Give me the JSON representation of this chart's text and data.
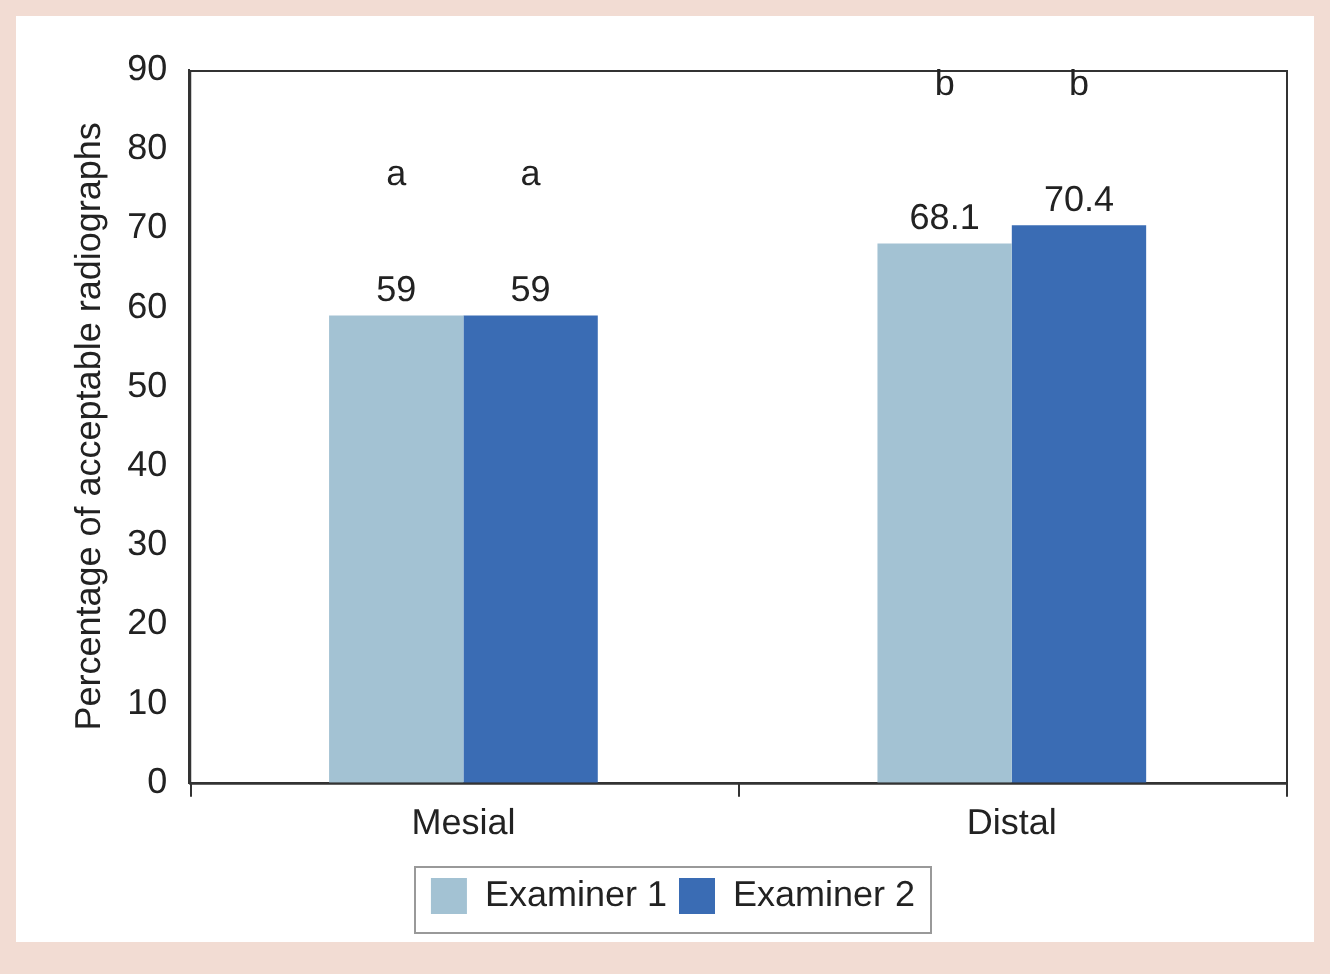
{
  "chart_data": {
    "type": "bar",
    "ylabel": "Percentage of acceptable radiographs",
    "categories": [
      "Mesial",
      "Distal"
    ],
    "series": [
      {
        "name": "Examiner 1",
        "color": "#a3c2d3",
        "values": [
          59,
          68.1
        ]
      },
      {
        "name": "Examiner 2",
        "color": "#3a6cb4",
        "values": [
          59,
          70.4
        ]
      }
    ],
    "ylim": [
      0,
      90
    ],
    "yticks": [
      0,
      10,
      20,
      30,
      40,
      50,
      60,
      70,
      80,
      90
    ],
    "data_labels": true,
    "grid": false,
    "legend": "bottom",
    "annotations": [
      "a",
      "a",
      "b",
      "b"
    ]
  }
}
